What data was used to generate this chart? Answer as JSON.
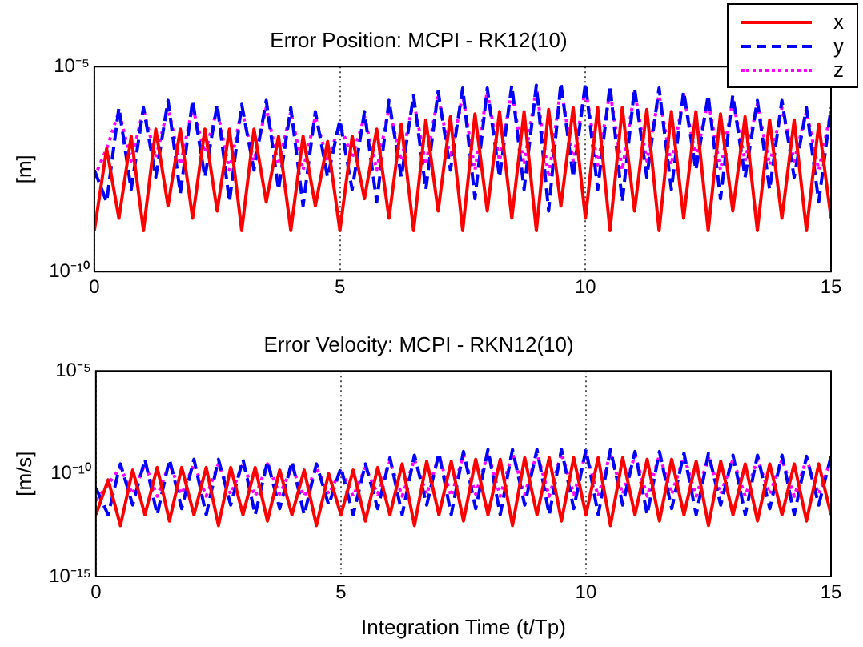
{
  "chart_data": [
    {
      "type": "line",
      "title": "Error Position: MCPI - RK12(10)",
      "ylabel": "[m]",
      "log": "y",
      "grid": "x",
      "legend": "top right",
      "x": [
        0,
        0.25,
        0.5,
        0.75,
        1,
        1.25,
        1.5,
        1.75,
        2,
        2.25,
        2.5,
        2.75,
        3,
        3.25,
        3.5,
        3.75,
        4,
        4.25,
        4.5,
        4.75,
        5,
        5.25,
        5.5,
        5.75,
        6,
        6.25,
        6.5,
        6.75,
        7,
        7.25,
        7.5,
        7.75,
        8,
        8.25,
        8.5,
        8.75,
        9,
        9.25,
        9.5,
        9.75,
        10,
        10.25,
        10.5,
        10.75,
        11,
        11.25,
        11.5,
        11.75,
        12,
        12.25,
        12.5,
        12.75,
        13,
        13.25,
        13.5,
        13.75,
        14,
        14.25,
        14.5,
        14.75,
        15
      ],
      "xlim": [
        0,
        15
      ],
      "xticks": [
        0,
        5,
        10,
        15
      ],
      "ylim": [
        1e-10,
        1e-05
      ],
      "yticks": [
        {
          "value": 1e-10,
          "label": "10⁻¹⁰"
        },
        {
          "value": 1e-05,
          "label": "10⁻⁵"
        }
      ],
      "series": [
        {
          "name": "x",
          "color": "#ff0000",
          "line_style": "solid",
          "values": [
            1e-09,
            1e-07,
            2e-09,
            2e-07,
            1e-09,
            3e-07,
            4e-09,
            3e-07,
            2e-09,
            3e-07,
            3e-09,
            3e-07,
            1e-09,
            3e-07,
            5e-09,
            2e-07,
            1e-09,
            2e-07,
            4e-09,
            1.5e-07,
            1e-09,
            2e-07,
            6e-09,
            3e-07,
            2e-09,
            4e-07,
            1e-09,
            5e-07,
            3e-09,
            6e-07,
            1e-09,
            7e-07,
            3e-09,
            8e-07,
            2e-09,
            8e-07,
            1e-09,
            9e-07,
            4e-09,
            1e-06,
            2e-09,
            1e-06,
            1e-09,
            1e-06,
            3e-09,
            9e-07,
            1e-09,
            8e-07,
            2e-09,
            8e-07,
            1e-09,
            7e-07,
            3e-09,
            6e-07,
            1e-09,
            5e-07,
            2e-09,
            5e-07,
            1e-09,
            4e-07,
            2e-09
          ]
        },
        {
          "name": "y",
          "color": "#0000ff",
          "line_style": "dashed",
          "values": [
            3e-08,
            5e-09,
            1e-06,
            1e-08,
            1e-06,
            2e-08,
            1.5e-06,
            8e-09,
            1.5e-06,
            2e-08,
            1.2e-06,
            5e-09,
            1.2e-06,
            3e-08,
            1.5e-06,
            1e-08,
            1e-06,
            4e-09,
            8e-07,
            2e-08,
            5e-07,
            1e-08,
            8e-07,
            5e-09,
            1.5e-06,
            2e-08,
            2e-06,
            1e-08,
            2.5e-06,
            3e-08,
            3e-06,
            6e-09,
            3e-06,
            2e-08,
            3.5e-06,
            1e-08,
            3.5e-06,
            3e-09,
            4e-06,
            2e-08,
            4e-06,
            1e-08,
            3.5e-06,
            5e-09,
            3e-06,
            2e-08,
            3e-06,
            1e-08,
            2.5e-06,
            3e-08,
            2e-06,
            6e-09,
            2e-06,
            2e-08,
            1.5e-06,
            1e-08,
            1.5e-06,
            2e-08,
            1e-06,
            5e-09,
            1e-06
          ]
        },
        {
          "name": "z",
          "color": "#ff00ff",
          "line_style": "dotted",
          "values": [
            2e-08,
            1e-07,
            8e-07,
            5e-08,
            9e-07,
            6e-08,
            1e-06,
            4e-08,
            1e-06,
            8e-08,
            9e-07,
            3e-08,
            9e-07,
            5e-08,
            1e-06,
            4e-08,
            8e-07,
            3e-08,
            6e-07,
            5e-08,
            4e-07,
            6e-08,
            6e-07,
            3e-08,
            1e-06,
            5e-08,
            1.5e-06,
            4e-08,
            2e-06,
            6e-08,
            2e-06,
            3e-08,
            2.5e-06,
            5e-08,
            2.5e-06,
            4e-08,
            3e-06,
            2e-08,
            3e-06,
            5e-08,
            3e-06,
            4e-08,
            2.5e-06,
            3e-08,
            2.5e-06,
            5e-08,
            2e-06,
            4e-08,
            2e-06,
            6e-08,
            1.5e-06,
            3e-08,
            1.5e-06,
            5e-08,
            1.2e-06,
            4e-08,
            1e-06,
            5e-08,
            8e-07,
            3e-08,
            8e-07
          ]
        }
      ]
    },
    {
      "type": "line",
      "title": "Error Velocity: MCPI - RKN12(10)",
      "xlabel": "Integration Time (t/Tp)",
      "ylabel": "[m/s]",
      "log": "y",
      "grid": "x",
      "x": [
        0,
        0.25,
        0.5,
        0.75,
        1,
        1.25,
        1.5,
        1.75,
        2,
        2.25,
        2.5,
        2.75,
        3,
        3.25,
        3.5,
        3.75,
        4,
        4.25,
        4.5,
        4.75,
        5,
        5.25,
        5.5,
        5.75,
        6,
        6.25,
        6.5,
        6.75,
        7,
        7.25,
        7.5,
        7.75,
        8,
        8.25,
        8.5,
        8.75,
        9,
        9.25,
        9.5,
        9.75,
        10,
        10.25,
        10.5,
        10.75,
        11,
        11.25,
        11.5,
        11.75,
        12,
        12.25,
        12.5,
        12.75,
        13,
        13.25,
        13.5,
        13.75,
        14,
        14.25,
        14.5,
        14.75,
        15
      ],
      "xlim": [
        0,
        15
      ],
      "xticks": [
        0,
        5,
        10,
        15
      ],
      "ylim": [
        1e-15,
        1e-05
      ],
      "yticks": [
        {
          "value": 1e-15,
          "label": "10⁻¹⁵"
        },
        {
          "value": 1e-10,
          "label": "10⁻¹⁰"
        },
        {
          "value": 1e-05,
          "label": "10⁻⁵"
        }
      ],
      "series": [
        {
          "color": "#ff0000",
          "line_style": "solid",
          "values": [
            1e-12,
            5e-11,
            3e-13,
            1.5e-10,
            1e-12,
            2e-10,
            5e-13,
            2e-10,
            1e-12,
            2e-10,
            3e-13,
            2e-10,
            1e-12,
            2e-10,
            5e-13,
            1.5e-10,
            1e-12,
            1.5e-10,
            3e-13,
            1e-10,
            1e-12,
            1.5e-10,
            5e-13,
            2e-10,
            1e-12,
            3e-10,
            3e-13,
            4e-10,
            1e-12,
            4e-10,
            5e-13,
            5e-10,
            1e-12,
            5e-10,
            3e-13,
            6e-10,
            1e-12,
            6e-10,
            5e-13,
            6e-10,
            1e-12,
            6e-10,
            3e-13,
            6e-10,
            1e-12,
            5e-10,
            5e-13,
            5e-10,
            1e-12,
            4e-10,
            3e-13,
            4e-10,
            1e-12,
            3e-10,
            5e-13,
            3e-10,
            1e-12,
            3e-10,
            5e-13,
            3e-10,
            1e-12
          ]
        },
        {
          "color": "#0000ff",
          "line_style": "dashed",
          "values": [
            2e-11,
            1e-12,
            3e-10,
            3e-12,
            5e-10,
            1e-12,
            5e-10,
            2e-12,
            5e-10,
            1e-12,
            5e-10,
            3e-12,
            5e-10,
            1e-12,
            4e-10,
            2e-12,
            4e-10,
            1e-12,
            3e-10,
            3e-12,
            2e-10,
            1e-12,
            3e-10,
            2e-12,
            6e-10,
            1e-12,
            8e-10,
            3e-12,
            1e-09,
            1e-12,
            1.2e-09,
            2e-12,
            1.5e-09,
            1e-12,
            1.5e-09,
            3e-12,
            1.5e-09,
            1e-12,
            1.5e-09,
            2e-12,
            1.5e-09,
            1e-12,
            1.5e-09,
            3e-12,
            1.2e-09,
            1e-12,
            1.2e-09,
            2e-12,
            1e-09,
            1e-12,
            1e-09,
            3e-12,
            8e-10,
            1e-12,
            8e-10,
            2e-12,
            8e-10,
            1e-12,
            7e-10,
            3e-12,
            7e-10
          ]
        },
        {
          "color": "#ff00ff",
          "line_style": "dotted",
          "values": [
            5e-12,
            3e-11,
            2e-10,
            1e-11,
            3e-10,
            8e-12,
            3e-10,
            1e-11,
            3e-10,
            8e-12,
            3e-10,
            1e-11,
            3e-10,
            8e-12,
            3e-10,
            1e-11,
            2e-10,
            8e-12,
            2e-10,
            1e-11,
            1.5e-10,
            8e-12,
            2e-10,
            1e-11,
            4e-10,
            8e-12,
            5e-10,
            1e-11,
            7e-10,
            8e-12,
            8e-10,
            1e-11,
            1e-09,
            8e-12,
            1e-09,
            1e-11,
            1e-09,
            8e-12,
            1e-09,
            1e-11,
            1e-09,
            8e-12,
            1e-09,
            1e-11,
            8e-10,
            8e-12,
            8e-10,
            1e-11,
            7e-10,
            8e-12,
            6e-10,
            1e-11,
            5e-10,
            8e-12,
            5e-10,
            1e-11,
            5e-10,
            8e-12,
            5e-10,
            1e-11,
            5e-10
          ]
        }
      ]
    }
  ]
}
